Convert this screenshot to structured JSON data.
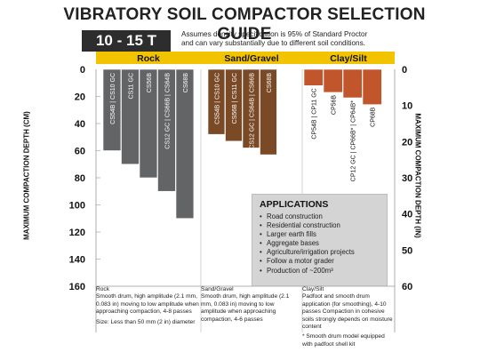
{
  "header": {
    "title": "VIBRATORY SOIL COMPACTOR SELECTION GUIDE",
    "range_badge": "10 - 15 T",
    "note_line1": "Assumes density specification is 95% of Standard Proctor",
    "note_line2": "and can vary substantially due to different soil conditions."
  },
  "chart_data": {
    "type": "bar",
    "title": "VIBRATORY SOIL COMPACTOR SELECTION GUIDE",
    "ylabel": "MAXIMUM COMPACTION DEPTH (CM)",
    "ylabel_right": "MAXIMUM COMPACTION DEPTH (IN)",
    "ylim": [
      0,
      160
    ],
    "ylim_right": [
      0,
      60
    ],
    "yticks": [
      "0",
      "20",
      "40",
      "60",
      "80",
      "100",
      "120",
      "140",
      "160"
    ],
    "yticks_right": [
      "0",
      "10",
      "20",
      "30",
      "40",
      "50",
      "60"
    ],
    "y_axis_inverted": true,
    "groups": [
      {
        "name": "Rock",
        "color": "#636466",
        "bars": [
          {
            "label": "CS54B | CS10 GC",
            "value": 60
          },
          {
            "label": "CS11 GC",
            "value": 70
          },
          {
            "label": "CS56B",
            "value": 80
          },
          {
            "label": "CS12 GC | CS66B | CS64B",
            "value": 90
          },
          {
            "label": "CS68B",
            "value": 110
          }
        ]
      },
      {
        "name": "Sand/Gravel",
        "color": "#7a4a26",
        "bars": [
          {
            "label": "CS54B | CS10 GC",
            "value": 48
          },
          {
            "label": "CS56B | CS11 GC",
            "value": 53
          },
          {
            "label": "CS12 GC | CS64B | CS66B",
            "value": 58
          },
          {
            "label": "CS68B",
            "value": 63
          }
        ]
      },
      {
        "name": "Clay/Silt",
        "color": "#c1562c",
        "bars": [
          {
            "label": "CP54B | CP11 GC",
            "value": 12
          },
          {
            "label": "CP56B",
            "value": 17
          },
          {
            "label": "CP12 GC | CP66B* | CP64B*",
            "value": 21
          },
          {
            "label": "CP68B",
            "value": 26
          }
        ]
      }
    ],
    "grid": false,
    "legend": "none"
  },
  "applications": {
    "heading": "APPLICATIONS",
    "items": [
      "Road construction",
      "Residential construction",
      "Larger earth fills",
      "Aggregate bases",
      "Agriculture/irrigation projects",
      "Follow a motor grader",
      "Production of ~200m³"
    ]
  },
  "descriptions": {
    "rock": {
      "heading": "Rock",
      "text": "Smooth drum, high amplitude (2.1 mm, 0.083 in) moving to low amplitude when approaching compaction, 4-8 passes",
      "size": "Size: Less than 50 mm (2 in) diameter"
    },
    "sand": {
      "heading": "Sand/Gravel",
      "text": "Smooth drum, high amplitude (2.1 mm, 0.083 in) moving to low amplitude when approaching compaction, 4-6 passes"
    },
    "clay": {
      "heading": "Clay/Silt",
      "text": "Padfoot and smooth drum application (for smoothing), 4-10 passes Compaction in cohesive soils strongly depends on moisture content",
      "footnote": "* Smooth drum model equipped with padfoot shell kit"
    }
  },
  "colors": {
    "header_band": "#f2c400",
    "rock": "#636466",
    "sand": "#7a4a26",
    "clay": "#c1562c",
    "badge": "#2d2d2d",
    "applications_box": "#d4d4d4"
  }
}
